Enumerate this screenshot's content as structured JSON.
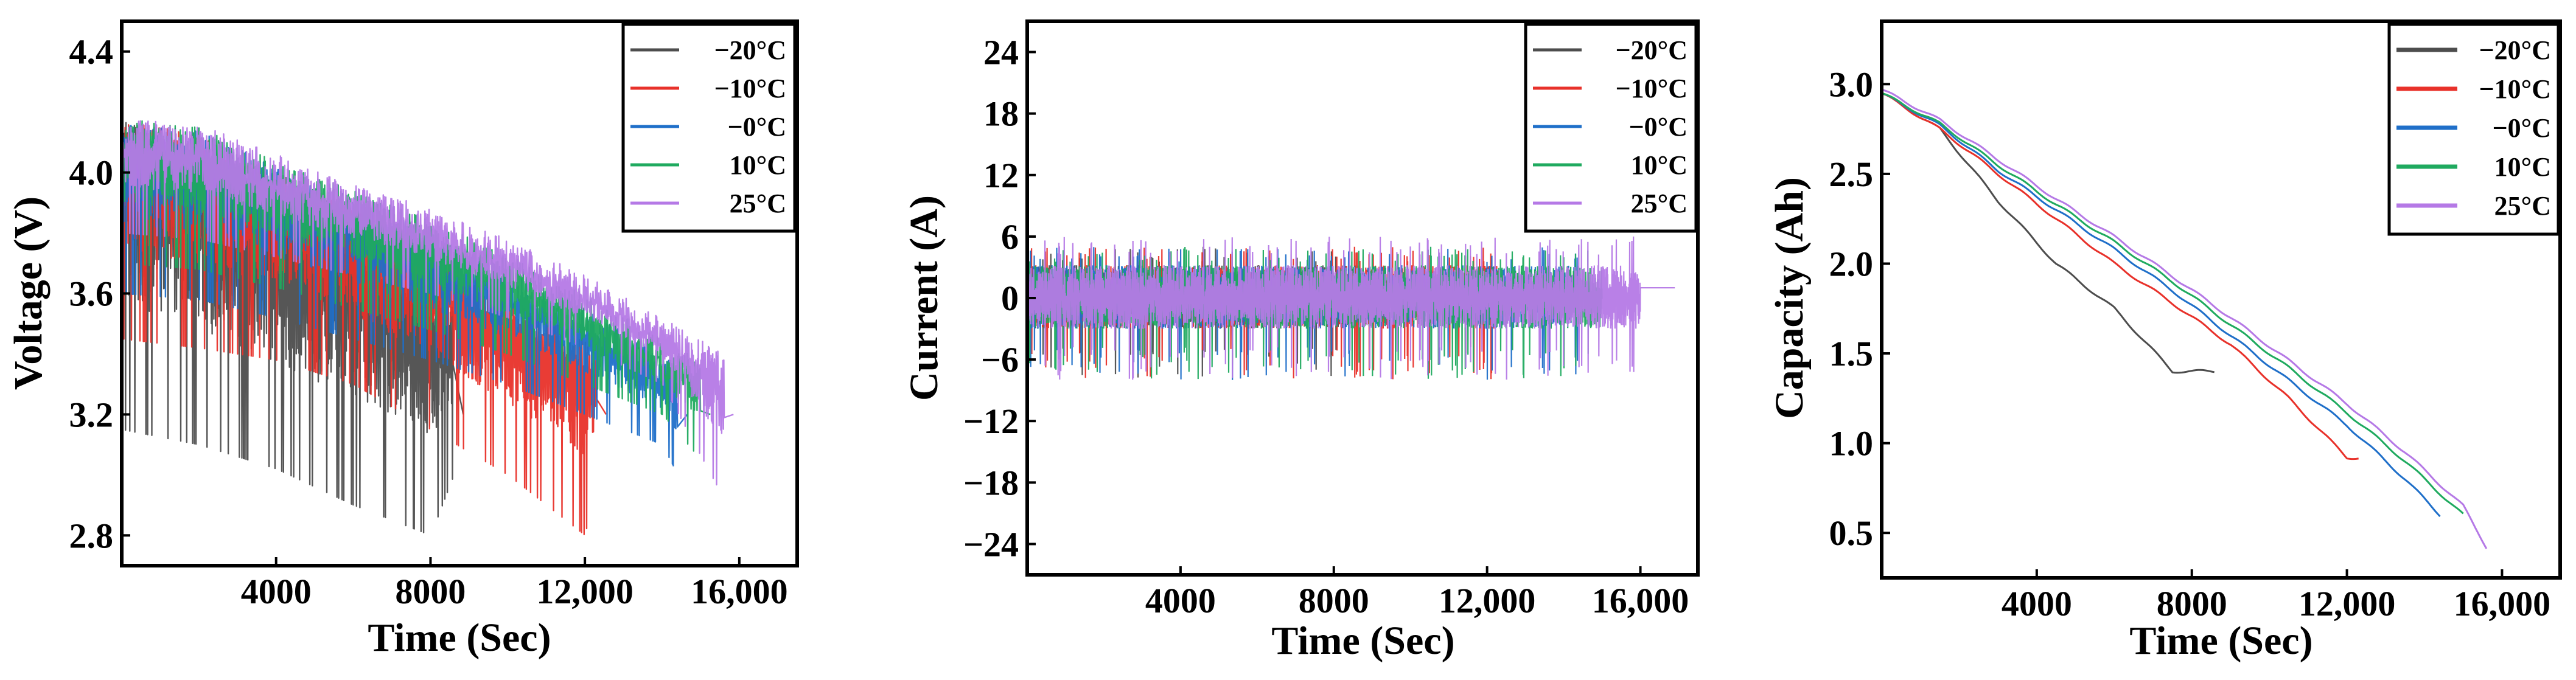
{
  "colors": {
    "neg20": "#4d4d4d",
    "neg10": "#e8312a",
    "zero": "#1f6fc9",
    "pos10": "#1faa5f",
    "pos25": "#b579e6"
  },
  "legend": [
    "−20°C",
    "−10°C",
    "−0°C",
    "10°C",
    "25°C"
  ],
  "chart_data": [
    {
      "type": "line",
      "title": "",
      "xlabel": "Time (Sec)",
      "ylabel": "Voltage (V)",
      "xlim": [
        0,
        17500
      ],
      "ylim": [
        2.7,
        4.5
      ],
      "xticks": [
        4000,
        8000,
        12000,
        16000
      ],
      "xtick_labels": [
        "4000",
        "8000",
        "12,000",
        "16,000"
      ],
      "yticks": [
        2.8,
        3.2,
        3.6,
        4.0,
        4.4
      ],
      "ytick_labels": [
        "2.8",
        "3.2",
        "3.6",
        "4.0",
        "4.4"
      ],
      "legend_position": "top-right",
      "grid": false,
      "series": [
        {
          "name": "−20°C",
          "color": "#4d4d4d",
          "x": [
            0,
            2000,
            4000,
            6000,
            8000,
            8600
          ],
          "upper": [
            4.18,
            4.05,
            3.9,
            3.78,
            3.62,
            3.55
          ],
          "lower": [
            3.15,
            3.1,
            3.02,
            2.9,
            2.8,
            3.0
          ],
          "end_value": 3.2
        },
        {
          "name": "−10°C",
          "color": "#e8312a",
          "x": [
            0,
            2000,
            4000,
            6000,
            8000,
            10000,
            12000,
            12300
          ],
          "upper": [
            4.18,
            4.12,
            4.0,
            3.88,
            3.75,
            3.6,
            3.45,
            3.4
          ],
          "lower": [
            3.45,
            3.42,
            3.38,
            3.3,
            3.15,
            3.0,
            2.8,
            3.0
          ],
          "end_value": 3.2
        },
        {
          "name": "−0°C",
          "color": "#1f6fc9",
          "x": [
            0,
            2000,
            4000,
            6000,
            8000,
            10000,
            12000,
            14000,
            14400
          ],
          "upper": [
            4.18,
            4.14,
            4.02,
            3.92,
            3.8,
            3.68,
            3.55,
            3.4,
            3.35
          ],
          "lower": [
            3.6,
            3.58,
            3.52,
            3.45,
            3.38,
            3.3,
            3.2,
            3.1,
            3.0
          ],
          "end_value": 3.2
        },
        {
          "name": "10°C",
          "color": "#1faa5f",
          "x": [
            0,
            2000,
            4000,
            6000,
            8000,
            10000,
            12000,
            14000,
            15000
          ],
          "upper": [
            4.18,
            4.15,
            4.04,
            3.94,
            3.84,
            3.73,
            3.6,
            3.45,
            3.38
          ],
          "lower": [
            3.7,
            3.68,
            3.62,
            3.55,
            3.48,
            3.4,
            3.3,
            3.2,
            3.05
          ],
          "end_value": 3.2
        },
        {
          "name": "25°C",
          "color": "#b579e6",
          "x": [
            0,
            2000,
            4000,
            6000,
            8000,
            10000,
            12000,
            14000,
            15600
          ],
          "upper": [
            4.18,
            4.16,
            4.06,
            3.97,
            3.88,
            3.78,
            3.66,
            3.52,
            3.4
          ],
          "lower": [
            3.8,
            3.78,
            3.72,
            3.66,
            3.6,
            3.52,
            3.42,
            3.3,
            2.92
          ],
          "end_value": 3.2
        }
      ]
    },
    {
      "type": "line",
      "title": "",
      "xlabel": "Time (Sec)",
      "ylabel": "Current (A)",
      "xlim": [
        0,
        17500
      ],
      "ylim": [
        -27,
        27
      ],
      "xticks": [
        4000,
        8000,
        12000,
        16000
      ],
      "xtick_labels": [
        "4000",
        "8000",
        "12,000",
        "16,000"
      ],
      "yticks": [
        -24,
        -18,
        -12,
        -6,
        0,
        6,
        12,
        18,
        24
      ],
      "ytick_labels": [
        "−24",
        "−18",
        "−12",
        "−6",
        "0",
        "6",
        "12",
        "18",
        "24"
      ],
      "legend_position": "top-right",
      "grid": false,
      "series": [
        {
          "name": "−20°C",
          "color": "#4d4d4d",
          "x_end": 8600,
          "max": 5,
          "min": -8
        },
        {
          "name": "−10°C",
          "color": "#e8312a",
          "x_end": 12300,
          "max": 5,
          "min": -8
        },
        {
          "name": "−0°C",
          "color": "#1f6fc9",
          "x_end": 14400,
          "max": 5,
          "min": -8
        },
        {
          "name": "10°C",
          "color": "#1faa5f",
          "x_end": 15000,
          "max": 5,
          "min": -8
        },
        {
          "name": "25°C",
          "color": "#b579e6",
          "x_end": 16000,
          "max": 6,
          "min": -8,
          "tail_value": 1
        }
      ]
    },
    {
      "type": "line",
      "title": "",
      "xlabel": "Time (Sec)",
      "ylabel": "Capacity (Ah)",
      "xlim": [
        0,
        17500
      ],
      "ylim": [
        0.25,
        3.35
      ],
      "xticks": [
        4000,
        8000,
        12000,
        16000
      ],
      "xtick_labels": [
        "4000",
        "8000",
        "12,000",
        "16,000"
      ],
      "yticks": [
        0.5,
        1.0,
        1.5,
        2.0,
        2.5,
        3.0
      ],
      "ytick_labels": [
        "0.5",
        "1.0",
        "1.5",
        "2.0",
        "2.5",
        "3.0"
      ],
      "legend_position": "top-right",
      "grid": false,
      "series": [
        {
          "name": "−20°C",
          "color": "#4d4d4d",
          "x": [
            0,
            1500,
            3000,
            4500,
            6000,
            7500,
            8600
          ],
          "y": [
            2.95,
            2.75,
            2.35,
            2.0,
            1.75,
            1.4,
            1.4
          ]
        },
        {
          "name": "−10°C",
          "color": "#e8312a",
          "x": [
            0,
            1500,
            3000,
            4500,
            6000,
            7500,
            9000,
            10500,
            12000,
            12300
          ],
          "y": [
            2.95,
            2.75,
            2.5,
            2.25,
            2.0,
            1.78,
            1.55,
            1.25,
            0.92,
            0.92
          ]
        },
        {
          "name": "−0°C",
          "color": "#1f6fc9",
          "x": [
            0,
            1500,
            3000,
            4500,
            6000,
            7500,
            9000,
            10500,
            12000,
            13500,
            14400
          ],
          "y": [
            2.95,
            2.77,
            2.52,
            2.3,
            2.08,
            1.85,
            1.6,
            1.35,
            1.1,
            0.8,
            0.6
          ]
        },
        {
          "name": "10°C",
          "color": "#1faa5f",
          "x": [
            0,
            1500,
            3000,
            4500,
            6000,
            7500,
            9000,
            10500,
            12000,
            13500,
            15000
          ],
          "y": [
            2.95,
            2.78,
            2.55,
            2.33,
            2.12,
            1.9,
            1.66,
            1.42,
            1.17,
            0.9,
            0.6
          ]
        },
        {
          "name": "25°C",
          "color": "#b579e6",
          "x": [
            0,
            1500,
            3000,
            4500,
            6000,
            7500,
            9000,
            10500,
            12000,
            13500,
            15000,
            15600
          ],
          "y": [
            2.97,
            2.8,
            2.58,
            2.36,
            2.15,
            1.93,
            1.7,
            1.46,
            1.22,
            0.95,
            0.65,
            0.42
          ]
        }
      ]
    }
  ]
}
